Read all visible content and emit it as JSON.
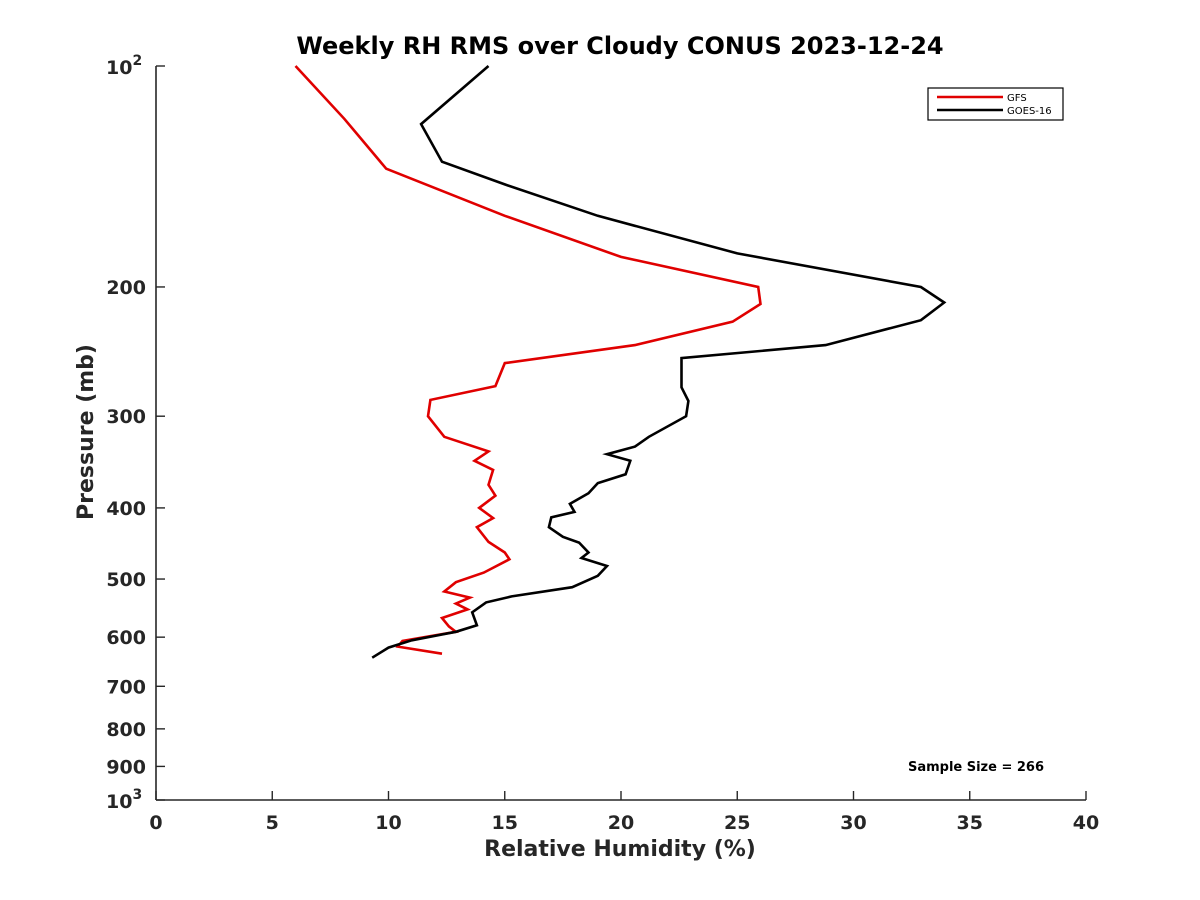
{
  "chart_data": {
    "type": "line",
    "title": "Weekly RH RMS over Cloudy CONUS 2023-12-24",
    "xlabel": "Relative Humidity (%)",
    "ylabel": "Pressure (mb)",
    "xlim": [
      0,
      40
    ],
    "ylim": [
      100,
      1000
    ],
    "y_scale": "log",
    "y_reversed": true,
    "grid": false,
    "legend_position": "top-right",
    "x_ticks": [
      {
        "value": 0,
        "label": "0"
      },
      {
        "value": 5,
        "label": "5"
      },
      {
        "value": 10,
        "label": "10"
      },
      {
        "value": 15,
        "label": "15"
      },
      {
        "value": 20,
        "label": "20"
      },
      {
        "value": 25,
        "label": "25"
      },
      {
        "value": 30,
        "label": "30"
      },
      {
        "value": 35,
        "label": "35"
      },
      {
        "value": 40,
        "label": "40"
      }
    ],
    "y_ticks": [
      {
        "value": 100,
        "base": "10",
        "exp": "2"
      },
      {
        "value": 200,
        "label": "200"
      },
      {
        "value": 300,
        "label": "300"
      },
      {
        "value": 400,
        "label": "400"
      },
      {
        "value": 500,
        "label": "500"
      },
      {
        "value": 600,
        "label": "600"
      },
      {
        "value": 700,
        "label": "700"
      },
      {
        "value": 800,
        "label": "800"
      },
      {
        "value": 900,
        "label": "900"
      },
      {
        "value": 1000,
        "base": "10",
        "exp": "3"
      }
    ],
    "series": [
      {
        "name": "GFS",
        "color": "#e00000",
        "points": [
          [
            6.0,
            100
          ],
          [
            8.1,
            118
          ],
          [
            9.9,
            138
          ],
          [
            15.0,
            160
          ],
          [
            20.0,
            182
          ],
          [
            25.9,
            200
          ],
          [
            26.0,
            211
          ],
          [
            24.8,
            223
          ],
          [
            20.6,
            240
          ],
          [
            15.0,
            254
          ],
          [
            14.6,
            273
          ],
          [
            11.8,
            285
          ],
          [
            11.7,
            300
          ],
          [
            12.4,
            320
          ],
          [
            14.3,
            335
          ],
          [
            13.7,
            345
          ],
          [
            14.5,
            355
          ],
          [
            14.3,
            372
          ],
          [
            14.6,
            385
          ],
          [
            13.9,
            400
          ],
          [
            14.5,
            413
          ],
          [
            13.8,
            425
          ],
          [
            14.3,
            445
          ],
          [
            15.0,
            460
          ],
          [
            15.2,
            470
          ],
          [
            14.1,
            490
          ],
          [
            12.9,
            505
          ],
          [
            12.4,
            520
          ],
          [
            13.5,
            530
          ],
          [
            12.9,
            540
          ],
          [
            13.4,
            550
          ],
          [
            12.3,
            565
          ],
          [
            12.6,
            580
          ],
          [
            12.9,
            590
          ],
          [
            10.6,
            607
          ],
          [
            10.4,
            618
          ],
          [
            12.3,
            632
          ]
        ]
      },
      {
        "name": "GOES-16",
        "color": "#000000",
        "points": [
          [
            14.3,
            100
          ],
          [
            11.4,
            120
          ],
          [
            12.3,
            135
          ],
          [
            15.0,
            145
          ],
          [
            19.0,
            160
          ],
          [
            25.0,
            180
          ],
          [
            32.9,
            200
          ],
          [
            33.9,
            210
          ],
          [
            32.9,
            222
          ],
          [
            28.8,
            240
          ],
          [
            22.6,
            250
          ],
          [
            22.6,
            274
          ],
          [
            22.9,
            286
          ],
          [
            22.8,
            300
          ],
          [
            21.2,
            320
          ],
          [
            20.6,
            330
          ],
          [
            19.4,
            338
          ],
          [
            20.4,
            345
          ],
          [
            20.2,
            360
          ],
          [
            19.0,
            370
          ],
          [
            18.6,
            382
          ],
          [
            17.8,
            395
          ],
          [
            18.0,
            405
          ],
          [
            17.0,
            412
          ],
          [
            16.9,
            425
          ],
          [
            17.5,
            438
          ],
          [
            18.2,
            446
          ],
          [
            18.6,
            460
          ],
          [
            18.3,
            468
          ],
          [
            19.4,
            480
          ],
          [
            19.0,
            495
          ],
          [
            17.9,
            513
          ],
          [
            15.3,
            528
          ],
          [
            14.2,
            538
          ],
          [
            13.6,
            555
          ],
          [
            13.8,
            578
          ],
          [
            12.9,
            590
          ],
          [
            11.0,
            606
          ],
          [
            10.0,
            620
          ],
          [
            9.3,
            640
          ]
        ]
      }
    ],
    "annotation": "Sample Size = 266"
  }
}
